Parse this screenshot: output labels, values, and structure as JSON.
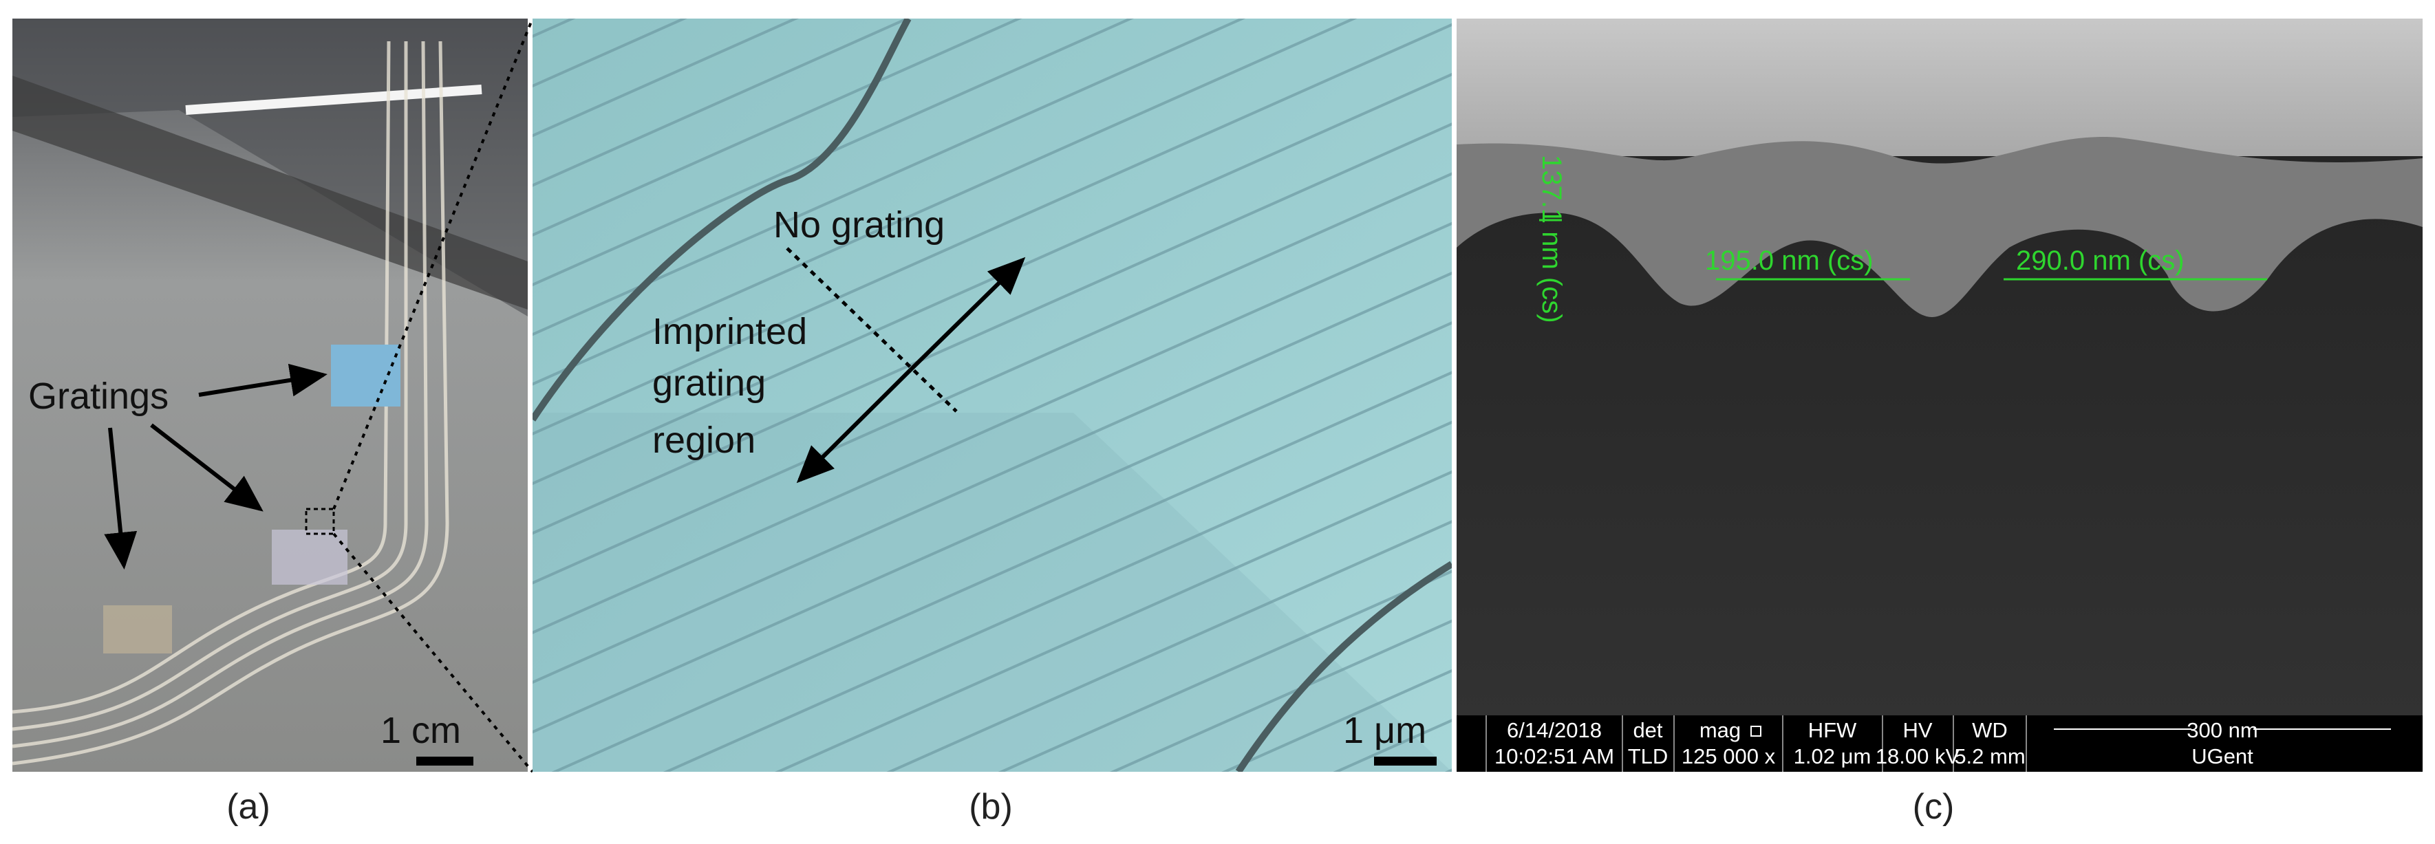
{
  "panels": {
    "a": {
      "caption": "(a)",
      "label": "Gratings",
      "scale_bar": "1 cm"
    },
    "b": {
      "caption": "(b)",
      "no_grating": "No grating",
      "imprinted": [
        "Imprinted",
        "grating",
        "region"
      ],
      "scale_bar": "1 μm"
    },
    "c": {
      "caption": "(c)",
      "measurements": [
        "137.1 nm (cs)",
        "195.0 nm (cs)",
        "290.0 nm (cs)"
      ],
      "info_bar": {
        "date": "6/14/2018",
        "time": "10:02:51 AM",
        "det_header": "det",
        "det": "TLD",
        "mag_header": "mag",
        "mag": "125 000 x",
        "hfw_header": "HFW",
        "hfw": "1.02 μm",
        "hv_header": "HV",
        "hv": "18.00 kV",
        "wd_header": "WD",
        "wd": "5.2 mm",
        "scale": "300 nm",
        "lab": "UGent"
      }
    }
  }
}
